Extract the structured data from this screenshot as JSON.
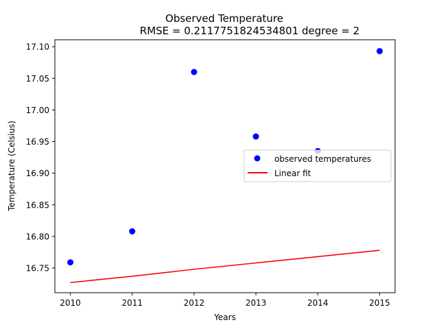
{
  "chart_data": {
    "type": "scatter",
    "title": "Observed Temperature",
    "subtitle": "RMSE = 0.2117751824534801 degree = 2",
    "xlabel": "Years",
    "ylabel": "Temperature (Celsius)",
    "xlim": [
      2009.75,
      2015.25
    ],
    "ylim": [
      16.711,
      17.111
    ],
    "x_ticks": [
      2010,
      2011,
      2012,
      2013,
      2014,
      2015
    ],
    "y_ticks": [
      16.75,
      16.8,
      16.85,
      16.9,
      16.95,
      17.0,
      17.05,
      17.1
    ],
    "y_tick_labels": [
      "16.75",
      "16.80",
      "16.85",
      "16.90",
      "16.95",
      "17.00",
      "17.05",
      "17.10"
    ],
    "grid": false,
    "legend_position": "center-right",
    "series": [
      {
        "name": "observed temperatures",
        "kind": "scatter",
        "color": "#0000ff",
        "x": [
          2010,
          2011,
          2012,
          2013,
          2014,
          2015
        ],
        "y": [
          16.759,
          16.808,
          17.06,
          16.958,
          16.935,
          17.093
        ]
      },
      {
        "name": "Linear fit",
        "kind": "line",
        "color": "#ff0000",
        "x": [
          2010,
          2011,
          2012,
          2013,
          2014,
          2015
        ],
        "y": [
          16.727,
          16.737,
          16.748,
          16.758,
          16.768,
          16.778
        ]
      }
    ]
  }
}
